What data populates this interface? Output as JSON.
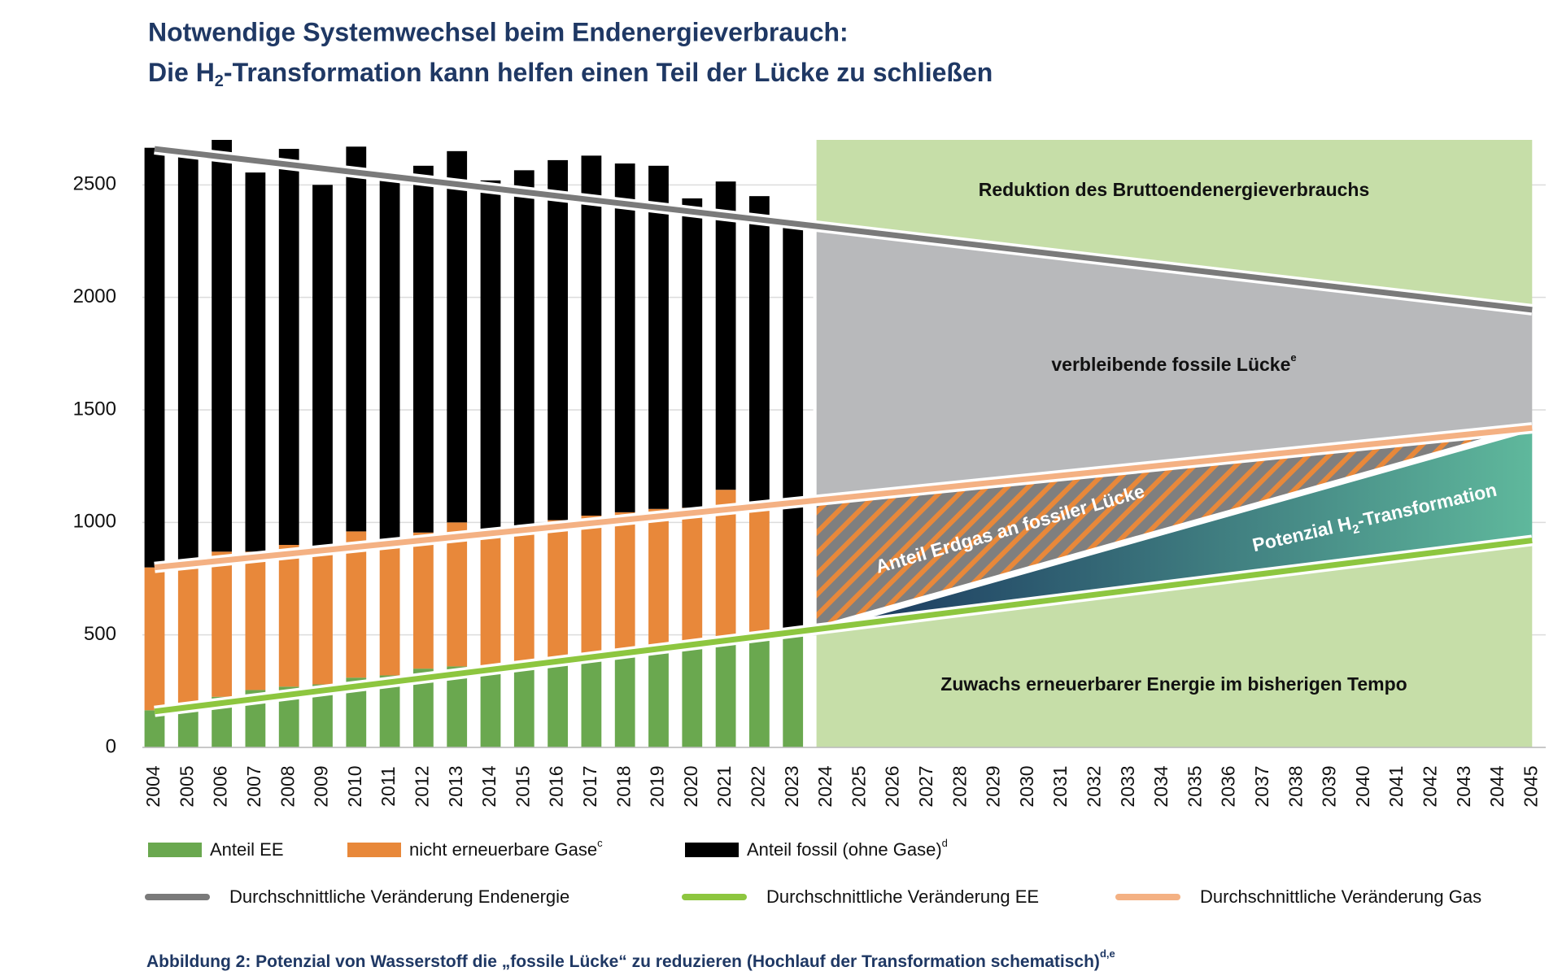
{
  "chart_data": {
    "type": "bar",
    "stacked": true,
    "title": {
      "line1": "Notwendige Systemwechsel beim Endenergieverbrauch:",
      "line2": [
        "Die H",
        "2",
        "-Transformation kann helfen einen Teil der Lücke zu schließen"
      ]
    },
    "categories": [
      "2004",
      "2005",
      "2006",
      "2007",
      "2008",
      "2009",
      "2010",
      "2011",
      "2012",
      "2013",
      "2014",
      "2015",
      "2016",
      "2017",
      "2018",
      "2019",
      "2020",
      "2021",
      "2022",
      "2023",
      "2024",
      "2025",
      "2026",
      "2027",
      "2028",
      "2029",
      "2030",
      "2031",
      "2032",
      "2033",
      "2034",
      "2035",
      "2036",
      "2037",
      "2038",
      "2039",
      "2040",
      "2041",
      "2042",
      "2043",
      "2044",
      "2045"
    ],
    "series": [
      {
        "name": "Anteil EE",
        "color": "#6aa84f",
        "values": [
          165,
          195,
          225,
          255,
          270,
          280,
          310,
          320,
          350,
          360,
          365,
          380,
          390,
          410,
          430,
          450,
          460,
          480,
          500,
          520,
          null,
          null,
          null,
          null,
          null,
          null,
          null,
          null,
          null,
          null,
          null,
          null,
          null,
          null,
          null,
          null,
          null,
          null,
          null,
          null,
          null,
          null
        ]
      },
      {
        "name": "nicht erneuerbare Gase",
        "sup": "c",
        "color": "#e8883a",
        "values": [
          635,
          620,
          645,
          615,
          630,
          580,
          650,
          600,
          605,
          640,
          565,
          590,
          620,
          620,
          615,
          610,
          605,
          665,
          590,
          0,
          null,
          null,
          null,
          null,
          null,
          null,
          null,
          null,
          null,
          null,
          null,
          null,
          null,
          null,
          null,
          null,
          null,
          null,
          null,
          null,
          null,
          null
        ]
      },
      {
        "name": "Anteil fossil (ohne Gase)",
        "sup": "d",
        "color": "#000000",
        "values": [
          1865,
          1815,
          1830,
          1685,
          1760,
          1640,
          1710,
          1610,
          1630,
          1650,
          1590,
          1595,
          1600,
          1600,
          1550,
          1525,
          1375,
          1370,
          1360,
          1800,
          null,
          null,
          null,
          null,
          null,
          null,
          null,
          null,
          null,
          null,
          null,
          null,
          null,
          null,
          null,
          null,
          null,
          null,
          null,
          null,
          null,
          null
        ]
      }
    ],
    "trends": [
      {
        "name": "Durchschnittliche Veränderung Endenergie",
        "color": "#7a7a7a",
        "x": [
          "2004",
          "2045"
        ],
        "values": [
          2660,
          1945
        ]
      },
      {
        "name": "Durchschnittliche Veränderung EE",
        "color": "#8dc63f",
        "x": [
          "2004",
          "2045"
        ],
        "values": [
          160,
          920
        ]
      },
      {
        "name": "Durchschnittliche Veränderung Gas",
        "color": "#f4b183",
        "x": [
          "2004",
          "2045"
        ],
        "values": [
          800,
          1420
        ]
      }
    ],
    "annotations": {
      "reduction": "Reduktion des Bruttoendenergieverbrauchs",
      "fossil_gap": [
        "verbleibende fossile Lücke",
        "e"
      ],
      "gas_share": "Anteil Erdgas an fossiler Lücke",
      "h2": [
        "Potenzial H",
        "2",
        "-Transformation"
      ],
      "renewables": "Zuwachs erneuerbarer Energie im bisherigen Tempo"
    },
    "caption": [
      "Abbildung 2: Potenzial von Wasserstoff die „fossile Lücke“ zu reduzieren (Hochlauf der Transformation schematisch)",
      "d,e"
    ],
    "ylim": [
      0,
      2700
    ],
    "yticks": [
      0,
      500,
      1000,
      1500,
      2000,
      2500
    ],
    "grid": true
  }
}
